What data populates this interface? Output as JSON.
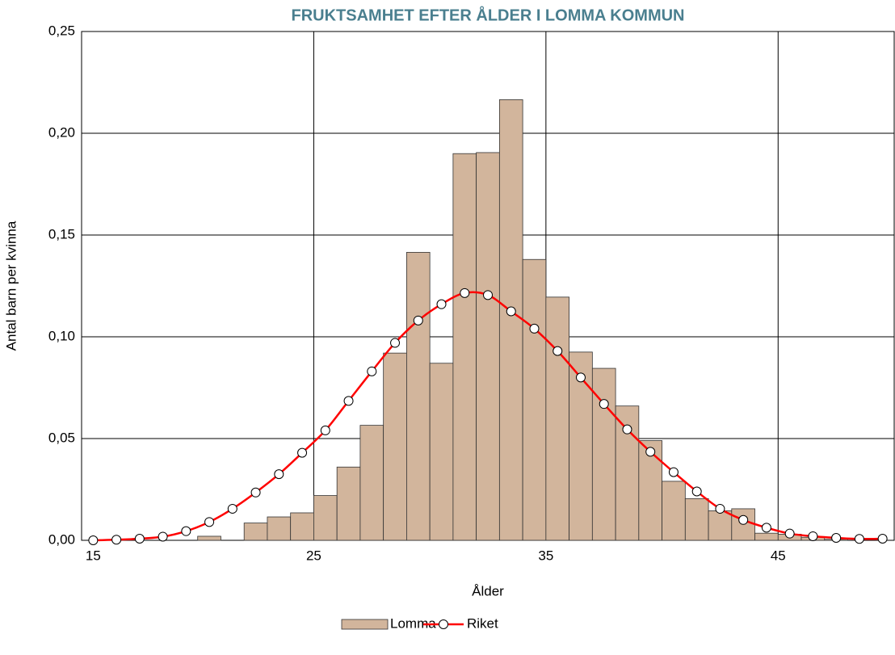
{
  "chart_data": {
    "type": "bar_line",
    "title": "FRUKTSAMHET EFTER ÅLDER I LOMMA KOMMUN",
    "xlabel": "Ålder",
    "ylabel": "Antal barn per kvinna",
    "categories": [
      "15",
      null,
      null,
      null,
      null,
      null,
      null,
      null,
      null,
      null,
      "25",
      null,
      null,
      null,
      null,
      null,
      null,
      null,
      null,
      null,
      "35",
      null,
      null,
      null,
      null,
      null,
      null,
      null,
      null,
      null,
      "45",
      null,
      null,
      null,
      null
    ],
    "series": [
      {
        "name": "Lomma",
        "type": "bar",
        "color": "#d2b59c",
        "values": [
          0,
          0,
          0,
          0,
          0,
          0.002,
          0,
          0.0085,
          0.0115,
          0.0135,
          0.022,
          0.036,
          0.0565,
          0.092,
          0.1415,
          0.087,
          0.19,
          0.1905,
          0.2165,
          0.138,
          0.1195,
          0.0925,
          0.0845,
          0.066,
          0.049,
          0.029,
          0.0205,
          0.0145,
          0.0155,
          0.0035,
          0.003,
          0.0015,
          0.0005,
          0,
          0
        ]
      },
      {
        "name": "Riket",
        "type": "line",
        "color": "#ff0000",
        "values": [
          0,
          0.0003,
          0.0008,
          0.0018,
          0.0045,
          0.009,
          0.0155,
          0.0235,
          0.0325,
          0.043,
          0.054,
          0.0685,
          0.083,
          0.097,
          0.108,
          0.116,
          0.1215,
          0.1205,
          0.1125,
          0.104,
          0.093,
          0.08,
          0.067,
          0.0545,
          0.0435,
          0.0335,
          0.024,
          0.0155,
          0.01,
          0.0062,
          0.0033,
          0.002,
          0.0012,
          0.0007,
          0.0008
        ]
      }
    ],
    "ylim": [
      0,
      0.25
    ],
    "yticks": [
      {
        "value": 0,
        "label": "0,00"
      },
      {
        "value": 0.05,
        "label": "0,05"
      },
      {
        "value": 0.1,
        "label": "0,10"
      },
      {
        "value": 0.15,
        "label": "0,15"
      },
      {
        "value": 0.2,
        "label": "0,20"
      },
      {
        "value": 0.25,
        "label": "0,25"
      }
    ],
    "grid": true,
    "legend": "bottom"
  }
}
